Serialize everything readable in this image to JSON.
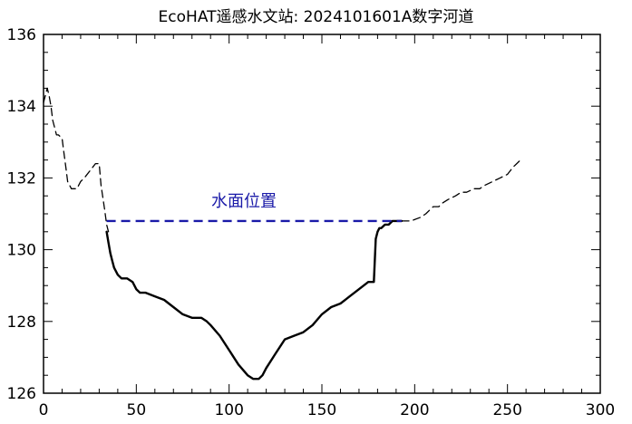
{
  "chart_data": {
    "type": "line",
    "title": "EcoHAT遥感水文站: 2024101601A数字河道",
    "xlabel": "",
    "ylabel": "",
    "xlim": [
      0,
      300
    ],
    "ylim": [
      126,
      136
    ],
    "x_ticks": [
      0,
      50,
      100,
      150,
      200,
      250,
      300
    ],
    "y_ticks": [
      126,
      128,
      130,
      132,
      134,
      136
    ],
    "grid": false,
    "colors": {
      "profile": "#000000",
      "water": "#1a1aa8",
      "annotation": "#1a1aa8"
    },
    "series": [
      {
        "role": "bank-left-dashed",
        "x": [
          0,
          2,
          3,
          4,
          5,
          6,
          7,
          8,
          10,
          11,
          12,
          13,
          14,
          15,
          16,
          18,
          20,
          22,
          25,
          28,
          30,
          31,
          33,
          34,
          35
        ],
        "y": [
          134.1,
          134.5,
          134.3,
          134.0,
          133.6,
          133.4,
          133.2,
          133.2,
          133.1,
          132.7,
          132.3,
          131.9,
          131.8,
          131.7,
          131.7,
          131.7,
          131.9,
          132.0,
          132.2,
          132.4,
          132.4,
          131.8,
          131.1,
          130.7,
          130.5
        ]
      },
      {
        "role": "channel-solid",
        "x": [
          34,
          35,
          36,
          37,
          38,
          40,
          42,
          45,
          48,
          50,
          52,
          55,
          60,
          65,
          70,
          75,
          80,
          85,
          88,
          90,
          95,
          100,
          105,
          110,
          113,
          116,
          118,
          120,
          125,
          130,
          135,
          140,
          145,
          150,
          155,
          160,
          165,
          170,
          175,
          178,
          179,
          180,
          181,
          182,
          184,
          186,
          188,
          190,
          193
        ],
        "y": [
          130.5,
          130.2,
          129.9,
          129.7,
          129.5,
          129.3,
          129.2,
          129.2,
          129.1,
          128.9,
          128.8,
          128.8,
          128.7,
          128.6,
          128.4,
          128.2,
          128.1,
          128.1,
          128.0,
          127.9,
          127.6,
          127.2,
          126.8,
          126.5,
          126.4,
          126.4,
          126.5,
          126.7,
          127.1,
          127.5,
          127.6,
          127.7,
          127.9,
          128.2,
          128.4,
          128.5,
          128.7,
          128.9,
          129.1,
          129.1,
          130.3,
          130.5,
          130.6,
          130.6,
          130.7,
          130.7,
          130.8,
          130.8,
          130.8
        ]
      },
      {
        "role": "bank-right-dashed",
        "x": [
          193,
          198,
          203,
          206,
          208,
          210,
          213,
          215,
          218,
          222,
          225,
          228,
          232,
          235,
          238,
          242,
          246,
          250,
          253,
          255,
          257
        ],
        "y": [
          130.8,
          130.8,
          130.9,
          131.0,
          131.1,
          131.2,
          131.2,
          131.3,
          131.4,
          131.5,
          131.6,
          131.6,
          131.7,
          131.7,
          131.8,
          131.9,
          132.0,
          132.1,
          132.3,
          132.4,
          132.5
        ]
      }
    ],
    "water_surface": {
      "y": 130.8,
      "x_start": 34,
      "x_end": 193
    },
    "annotation": {
      "text": "水面位置",
      "x": 108,
      "y": 131.2
    }
  }
}
